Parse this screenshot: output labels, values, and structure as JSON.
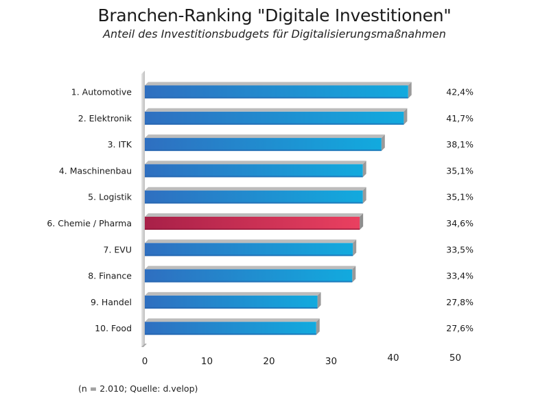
{
  "chart_data": {
    "type": "bar",
    "orientation": "horizontal",
    "title": "Branchen-Ranking \"Digitale Investitionen\"",
    "subtitle": "Anteil des Investitionsbudgets für Digitalisierungsmaßnahmen",
    "categories": [
      "1. Automotive",
      "2. Elektronik",
      "3. ITK",
      "4. Maschinenbau",
      "5. Logistik",
      "6. Chemie / Pharma",
      "7. EVU",
      "8. Finance",
      "9. Handel",
      "10. Food"
    ],
    "values": [
      42.4,
      41.7,
      38.1,
      35.1,
      35.1,
      34.6,
      33.5,
      33.4,
      27.8,
      27.6
    ],
    "value_labels": [
      "42,4%",
      "41,7%",
      "38,1%",
      "35,1%",
      "35,1%",
      "34,6%",
      "33,5%",
      "33,4%",
      "27,8%",
      "27,6%"
    ],
    "highlighted_index": 5,
    "xlim": [
      0,
      50
    ],
    "xticks": [
      0,
      10,
      20,
      30,
      40,
      50
    ],
    "xtick_labels": [
      "0",
      "10",
      "20",
      "30",
      "40",
      "50"
    ],
    "xlabel": "",
    "ylabel": "",
    "grid": false,
    "colors": {
      "bar": "#2e7fc8",
      "bar_light": "#14a9dc",
      "highlight": "#b8254c",
      "highlight_light": "#e8405e",
      "axis_wall": "#c8c8c8"
    }
  },
  "footnote": "(n = 2.010; Quelle: d.velop)"
}
